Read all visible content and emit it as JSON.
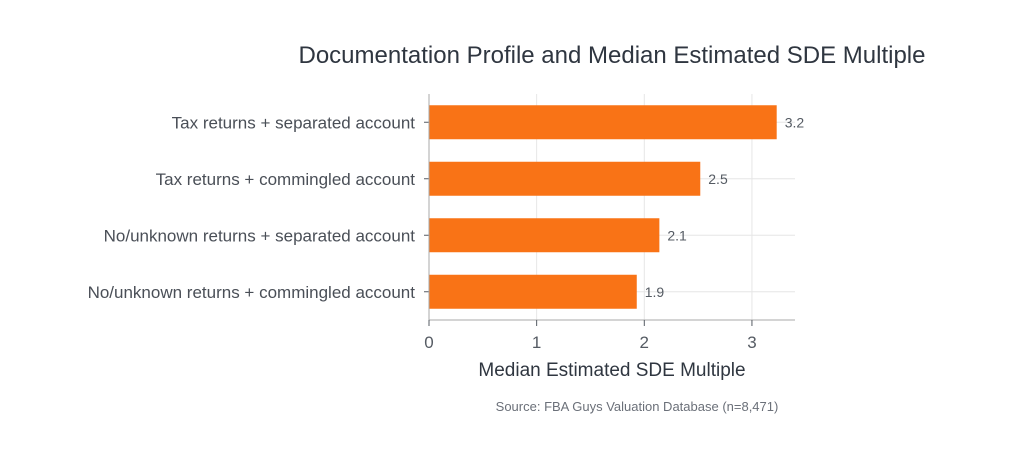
{
  "chart_data": {
    "type": "bar",
    "orientation": "horizontal",
    "title": "Documentation Profile and Median Estimated SDE Multiple",
    "xlabel": "Median Estimated SDE Multiple",
    "ylabel": "",
    "categories": [
      "Tax returns + separated account",
      "Tax returns + commingled account",
      "No/unknown returns + separated account",
      "No/unknown returns + commingled account"
    ],
    "values": [
      3.23,
      2.52,
      2.14,
      1.93
    ],
    "value_labels": [
      "3.2",
      "2.5",
      "2.1",
      "1.9"
    ],
    "xlim": [
      0,
      3.4
    ],
    "x_ticks": [
      0,
      1,
      2,
      3
    ],
    "x_tick_labels": [
      "0",
      "1",
      "2",
      "3"
    ],
    "grid": true,
    "bar_color": "#f97316",
    "source": "Source: FBA Guys Valuation Database (n=8,471)"
  }
}
